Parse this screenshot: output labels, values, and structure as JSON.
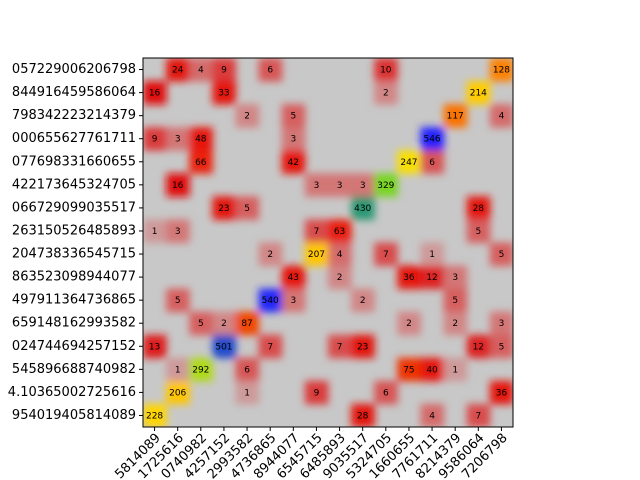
{
  "chart_data": {
    "type": "heatmap",
    "y_categories": [
      "057229006206798",
      "844916459586064",
      "798342223214379",
      "000655627761711",
      "077698331660655",
      "422173645324705",
      "066729099035517",
      "263150526485893",
      "204738336545715",
      "863523098944077",
      "497911364736865",
      "659148162993582",
      "024744694257152",
      "545896688740982",
      "4.10365002725616",
      "954019405814089"
    ],
    "x_categories": [
      "5814089",
      "1725616",
      "0740982",
      "4257152",
      "2993582",
      "4736865",
      "8944077",
      "6545715",
      "6485893",
      "9035517",
      "5324705",
      "1660655",
      "7761711",
      "8214379",
      "9586064",
      "7206798"
    ],
    "values": [
      [
        null,
        24,
        4,
        9,
        null,
        6,
        null,
        null,
        null,
        null,
        10,
        null,
        null,
        null,
        null,
        128
      ],
      [
        16,
        null,
        null,
        33,
        null,
        null,
        null,
        null,
        null,
        null,
        2,
        null,
        null,
        null,
        214,
        null
      ],
      [
        null,
        null,
        null,
        null,
        2,
        null,
        5,
        null,
        null,
        null,
        null,
        null,
        null,
        117,
        null,
        4
      ],
      [
        9,
        3,
        48,
        null,
        null,
        null,
        3,
        null,
        null,
        null,
        null,
        null,
        546,
        null,
        null,
        null
      ],
      [
        null,
        null,
        66,
        null,
        null,
        null,
        42,
        null,
        null,
        null,
        null,
        247,
        6,
        null,
        null,
        null
      ],
      [
        null,
        16,
        null,
        null,
        null,
        null,
        null,
        3,
        3,
        3,
        329,
        null,
        null,
        null,
        null,
        null
      ],
      [
        null,
        null,
        null,
        23,
        5,
        null,
        null,
        null,
        null,
        430,
        null,
        null,
        null,
        null,
        28,
        null
      ],
      [
        1,
        3,
        null,
        null,
        null,
        null,
        null,
        7,
        63,
        null,
        null,
        null,
        null,
        null,
        5,
        null
      ],
      [
        null,
        null,
        null,
        null,
        null,
        2,
        null,
        207,
        4,
        null,
        7,
        null,
        1,
        null,
        null,
        5
      ],
      [
        null,
        null,
        null,
        null,
        null,
        null,
        43,
        null,
        2,
        null,
        null,
        36,
        12,
        3,
        null,
        null
      ],
      [
        null,
        5,
        null,
        null,
        null,
        540,
        3,
        null,
        null,
        2,
        null,
        null,
        null,
        5,
        null,
        null
      ],
      [
        null,
        null,
        5,
        2,
        87,
        null,
        null,
        null,
        null,
        null,
        null,
        2,
        null,
        2,
        null,
        3
      ],
      [
        13,
        null,
        null,
        501,
        null,
        7,
        null,
        null,
        7,
        23,
        null,
        null,
        null,
        null,
        12,
        5
      ],
      [
        null,
        1,
        292,
        null,
        6,
        null,
        null,
        null,
        null,
        null,
        null,
        75,
        40,
        1,
        null,
        null
      ],
      [
        null,
        206,
        null,
        null,
        1,
        null,
        null,
        9,
        null,
        null,
        6,
        null,
        null,
        null,
        null,
        36
      ],
      [
        228,
        null,
        null,
        null,
        null,
        null,
        null,
        null,
        null,
        28,
        null,
        null,
        4,
        null,
        7,
        null
      ]
    ],
    "colors": [
      "#c8c8c8",
      "#e01010",
      "#e81808",
      "#ff8c00",
      "#ffe000",
      "#30d030",
      "#2020ff"
    ]
  }
}
